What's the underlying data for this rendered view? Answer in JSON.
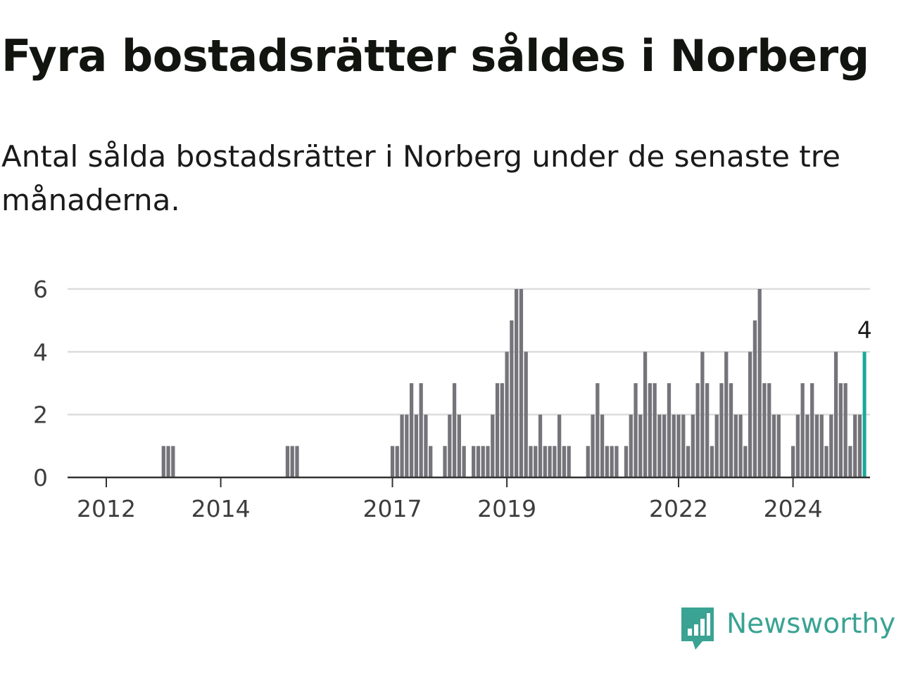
{
  "title": "Fyra bostadsrätter såldes i Norberg",
  "subtitle": "Antal sålda bostadsrätter i Norberg under de senaste tre månaderna.",
  "brand": {
    "name": "Newsworthy",
    "icon": "newsworthy-logo-icon",
    "color": "#3aa393"
  },
  "colors": {
    "bar": "#75747a",
    "highlight": "#1ba89a",
    "grid": "#dcdcdc",
    "axis": "#333333"
  },
  "chart_data": {
    "type": "bar",
    "x_ticks": [
      "2012",
      "2014",
      "2017",
      "2019",
      "2022",
      "2024"
    ],
    "y_ticks": [
      "0",
      "2",
      "4",
      "6"
    ],
    "ylim": [
      0,
      6
    ],
    "grid": true,
    "last_value_label": "4",
    "x_unit": "month (approximate, read off bar positions)",
    "series": [
      {
        "values": [
          {
            "x": "2012-01",
            "y": 0
          },
          {
            "x": "2012-02",
            "y": 0
          },
          {
            "x": "2012-03",
            "y": 0
          },
          {
            "x": "2012-04",
            "y": 0
          },
          {
            "x": "2012-05",
            "y": 0
          },
          {
            "x": "2012-06",
            "y": 0
          },
          {
            "x": "2012-07",
            "y": 0
          },
          {
            "x": "2012-08",
            "y": 0
          },
          {
            "x": "2012-09",
            "y": 0
          },
          {
            "x": "2012-10",
            "y": 0
          },
          {
            "x": "2012-11",
            "y": 0
          },
          {
            "x": "2012-12",
            "y": 0
          },
          {
            "x": "2013-01",
            "y": 1
          },
          {
            "x": "2013-02",
            "y": 1
          },
          {
            "x": "2013-03",
            "y": 1
          },
          {
            "x": "2013-04",
            "y": 0
          },
          {
            "x": "2013-05",
            "y": 0
          },
          {
            "x": "2013-06",
            "y": 0
          },
          {
            "x": "2013-07",
            "y": 0
          },
          {
            "x": "2013-08",
            "y": 0
          },
          {
            "x": "2013-09",
            "y": 0
          },
          {
            "x": "2013-10",
            "y": 0
          },
          {
            "x": "2013-11",
            "y": 0
          },
          {
            "x": "2013-12",
            "y": 0
          },
          {
            "x": "2014-01",
            "y": 0
          },
          {
            "x": "2014-02",
            "y": 0
          },
          {
            "x": "2014-03",
            "y": 0
          },
          {
            "x": "2014-04",
            "y": 0
          },
          {
            "x": "2014-05",
            "y": 0
          },
          {
            "x": "2014-06",
            "y": 0
          },
          {
            "x": "2014-07",
            "y": 0
          },
          {
            "x": "2014-08",
            "y": 0
          },
          {
            "x": "2014-09",
            "y": 0
          },
          {
            "x": "2014-10",
            "y": 0
          },
          {
            "x": "2014-11",
            "y": 0
          },
          {
            "x": "2014-12",
            "y": 0
          },
          {
            "x": "2015-01",
            "y": 0
          },
          {
            "x": "2015-02",
            "y": 0
          },
          {
            "x": "2015-03",
            "y": 1
          },
          {
            "x": "2015-04",
            "y": 1
          },
          {
            "x": "2015-05",
            "y": 1
          },
          {
            "x": "2015-06",
            "y": 0
          },
          {
            "x": "2015-07",
            "y": 0
          },
          {
            "x": "2015-08",
            "y": 0
          },
          {
            "x": "2015-09",
            "y": 0
          },
          {
            "x": "2015-10",
            "y": 0
          },
          {
            "x": "2015-11",
            "y": 0
          },
          {
            "x": "2015-12",
            "y": 0
          },
          {
            "x": "2016-01",
            "y": 0
          },
          {
            "x": "2016-02",
            "y": 0
          },
          {
            "x": "2016-03",
            "y": 0
          },
          {
            "x": "2016-04",
            "y": 0
          },
          {
            "x": "2016-05",
            "y": 0
          },
          {
            "x": "2016-06",
            "y": 0
          },
          {
            "x": "2016-07",
            "y": 0
          },
          {
            "x": "2016-08",
            "y": 0
          },
          {
            "x": "2016-09",
            "y": 0
          },
          {
            "x": "2016-10",
            "y": 0
          },
          {
            "x": "2016-11",
            "y": 0
          },
          {
            "x": "2016-12",
            "y": 0
          },
          {
            "x": "2017-01",
            "y": 1
          },
          {
            "x": "2017-02",
            "y": 1
          },
          {
            "x": "2017-03",
            "y": 2
          },
          {
            "x": "2017-04",
            "y": 2
          },
          {
            "x": "2017-05",
            "y": 3
          },
          {
            "x": "2017-06",
            "y": 2
          },
          {
            "x": "2017-07",
            "y": 3
          },
          {
            "x": "2017-08",
            "y": 2
          },
          {
            "x": "2017-09",
            "y": 1
          },
          {
            "x": "2017-10",
            "y": 0
          },
          {
            "x": "2017-11",
            "y": 0
          },
          {
            "x": "2017-12",
            "y": 1
          },
          {
            "x": "2018-01",
            "y": 2
          },
          {
            "x": "2018-02",
            "y": 3
          },
          {
            "x": "2018-03",
            "y": 2
          },
          {
            "x": "2018-04",
            "y": 1
          },
          {
            "x": "2018-05",
            "y": 0
          },
          {
            "x": "2018-06",
            "y": 1
          },
          {
            "x": "2018-07",
            "y": 1
          },
          {
            "x": "2018-08",
            "y": 1
          },
          {
            "x": "2018-09",
            "y": 1
          },
          {
            "x": "2018-10",
            "y": 2
          },
          {
            "x": "2018-11",
            "y": 3
          },
          {
            "x": "2018-12",
            "y": 3
          },
          {
            "x": "2019-01",
            "y": 4
          },
          {
            "x": "2019-02",
            "y": 5
          },
          {
            "x": "2019-03",
            "y": 6
          },
          {
            "x": "2019-04",
            "y": 6
          },
          {
            "x": "2019-05",
            "y": 4
          },
          {
            "x": "2019-06",
            "y": 1
          },
          {
            "x": "2019-07",
            "y": 1
          },
          {
            "x": "2019-08",
            "y": 2
          },
          {
            "x": "2019-09",
            "y": 1
          },
          {
            "x": "2019-10",
            "y": 1
          },
          {
            "x": "2019-11",
            "y": 1
          },
          {
            "x": "2019-12",
            "y": 2
          },
          {
            "x": "2020-01",
            "y": 1
          },
          {
            "x": "2020-02",
            "y": 1
          },
          {
            "x": "2020-03",
            "y": 0
          },
          {
            "x": "2020-04",
            "y": 0
          },
          {
            "x": "2020-05",
            "y": 0
          },
          {
            "x": "2020-06",
            "y": 1
          },
          {
            "x": "2020-07",
            "y": 2
          },
          {
            "x": "2020-08",
            "y": 3
          },
          {
            "x": "2020-09",
            "y": 2
          },
          {
            "x": "2020-10",
            "y": 1
          },
          {
            "x": "2020-11",
            "y": 1
          },
          {
            "x": "2020-12",
            "y": 1
          },
          {
            "x": "2021-01",
            "y": 0
          },
          {
            "x": "2021-02",
            "y": 1
          },
          {
            "x": "2021-03",
            "y": 2
          },
          {
            "x": "2021-04",
            "y": 3
          },
          {
            "x": "2021-05",
            "y": 2
          },
          {
            "x": "2021-06",
            "y": 4
          },
          {
            "x": "2021-07",
            "y": 3
          },
          {
            "x": "2021-08",
            "y": 3
          },
          {
            "x": "2021-09",
            "y": 2
          },
          {
            "x": "2021-10",
            "y": 2
          },
          {
            "x": "2021-11",
            "y": 3
          },
          {
            "x": "2021-12",
            "y": 2
          },
          {
            "x": "2022-01",
            "y": 2
          },
          {
            "x": "2022-02",
            "y": 2
          },
          {
            "x": "2022-03",
            "y": 1
          },
          {
            "x": "2022-04",
            "y": 2
          },
          {
            "x": "2022-05",
            "y": 3
          },
          {
            "x": "2022-06",
            "y": 4
          },
          {
            "x": "2022-07",
            "y": 3
          },
          {
            "x": "2022-08",
            "y": 1
          },
          {
            "x": "2022-09",
            "y": 2
          },
          {
            "x": "2022-10",
            "y": 3
          },
          {
            "x": "2022-11",
            "y": 4
          },
          {
            "x": "2022-12",
            "y": 3
          },
          {
            "x": "2023-01",
            "y": 2
          },
          {
            "x": "2023-02",
            "y": 2
          },
          {
            "x": "2023-03",
            "y": 1
          },
          {
            "x": "2023-04",
            "y": 4
          },
          {
            "x": "2023-05",
            "y": 5
          },
          {
            "x": "2023-06",
            "y": 6
          },
          {
            "x": "2023-07",
            "y": 3
          },
          {
            "x": "2023-08",
            "y": 3
          },
          {
            "x": "2023-09",
            "y": 2
          },
          {
            "x": "2023-10",
            "y": 2
          },
          {
            "x": "2023-11",
            "y": 0
          },
          {
            "x": "2023-12",
            "y": 0
          },
          {
            "x": "2024-01",
            "y": 1
          },
          {
            "x": "2024-02",
            "y": 2
          },
          {
            "x": "2024-03",
            "y": 3
          },
          {
            "x": "2024-04",
            "y": 2
          },
          {
            "x": "2024-05",
            "y": 3
          },
          {
            "x": "2024-06",
            "y": 2
          },
          {
            "x": "2024-07",
            "y": 2
          },
          {
            "x": "2024-08",
            "y": 1
          },
          {
            "x": "2024-09",
            "y": 2
          },
          {
            "x": "2024-10",
            "y": 4
          },
          {
            "x": "2024-11",
            "y": 3
          },
          {
            "x": "2024-12",
            "y": 3
          },
          {
            "x": "2025-01",
            "y": 1
          },
          {
            "x": "2025-02",
            "y": 2
          },
          {
            "x": "2025-03",
            "y": 2
          },
          {
            "x": "2025-04",
            "y": 4
          }
        ]
      }
    ]
  }
}
